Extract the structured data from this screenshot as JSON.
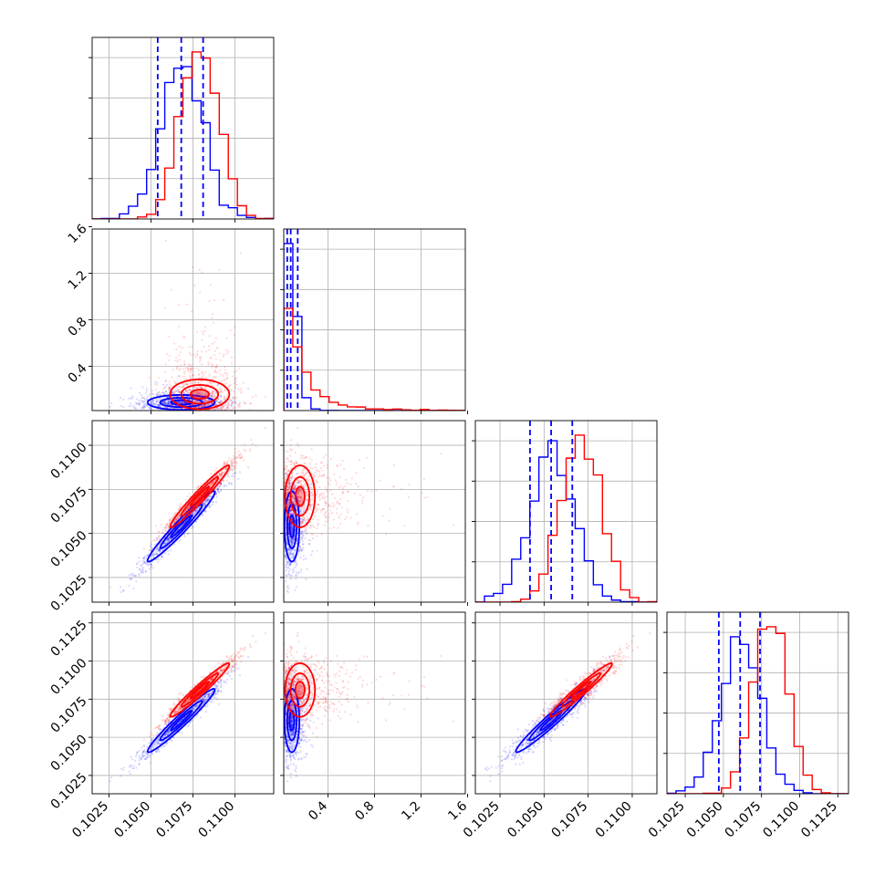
{
  "chart_data": {
    "type": "corner",
    "colors": {
      "series_a": "#0000ff",
      "series_b": "#ff0000"
    },
    "grid": true,
    "params": [
      {
        "range": [
          0.1015,
          0.1123
        ],
        "tick_values": [
          0.1025,
          0.105,
          0.1075,
          0.11
        ],
        "tick_labels": [
          "0.1025",
          "0.1050",
          "0.1075",
          "0.1100"
        ]
      },
      {
        "range": [
          0.02,
          1.58
        ],
        "tick_values": [
          0.4,
          0.8,
          1.2,
          1.6
        ],
        "tick_labels": [
          "0.4",
          "0.8",
          "1.2",
          "1.6"
        ]
      },
      {
        "range": [
          0.1011,
          0.1114
        ],
        "tick_values": [
          0.1025,
          0.105,
          0.1075,
          0.11
        ],
        "tick_labels": [
          "0.1025",
          "0.1050",
          "0.1075",
          "0.1100"
        ]
      },
      {
        "range": [
          0.1013,
          0.1132
        ],
        "tick_values": [
          0.1025,
          0.105,
          0.1075,
          0.11,
          0.1125
        ],
        "tick_labels": [
          "0.1025",
          "0.1050",
          "0.1075",
          "0.1100",
          "0.1125"
        ]
      }
    ],
    "series": [
      {
        "key": "series_a",
        "color": "#0000ff",
        "mean": [
          0.1068,
          0.09,
          0.1054,
          0.1061
        ],
        "std": [
          0.00125,
          0.04,
          0.00125,
          0.0013
        ],
        "quantiles": [
          [
            0.1054,
            0.1068,
            0.1081
          ],
          [
            0.05,
            0.08,
            0.14
          ],
          [
            0.1042,
            0.1054,
            0.1066
          ],
          [
            0.1047,
            0.1061,
            0.1074
          ]
        ]
      },
      {
        "key": "series_b",
        "color": "#ff0000",
        "mean": [
          0.1079,
          0.16,
          0.1071,
          0.1081
        ],
        "std": [
          0.0011,
          0.2,
          0.0011,
          0.0011
        ],
        "quantiles": [
          [
            0.1068,
            0.1079,
            0.109
          ],
          [
            0.06,
            0.12,
            0.35
          ],
          [
            0.106,
            0.1071,
            0.1082
          ],
          [
            0.107,
            0.1081,
            0.1092
          ]
        ]
      }
    ],
    "correlations": {
      "p0_p2": 0.97,
      "p0_p3": 0.97,
      "p2_p3": 0.97,
      "p1_other": 0.0
    },
    "quantile_line_series": "series_a",
    "quantile_line_style": "dashed"
  }
}
